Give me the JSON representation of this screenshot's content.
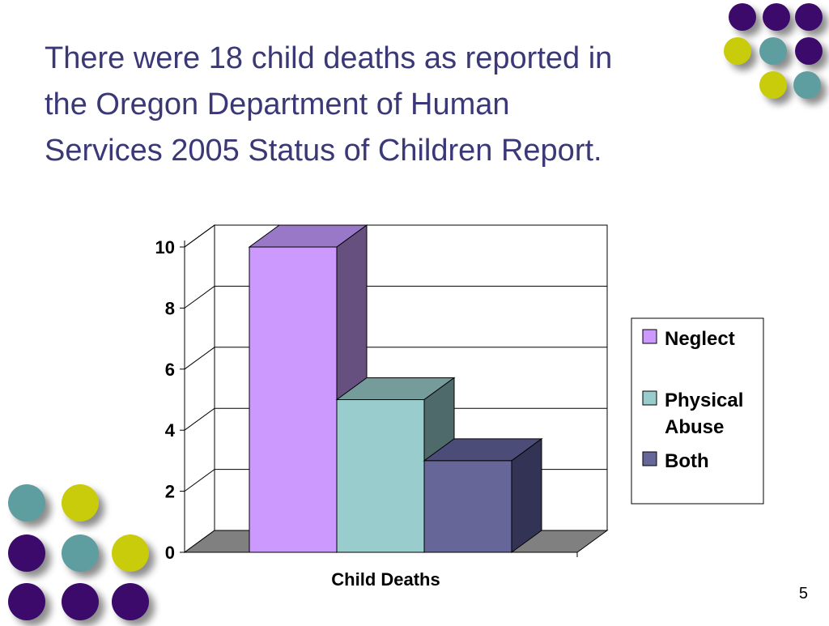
{
  "slide": {
    "title_lines": [
      "There were 18 child deaths as reported in",
      "the Oregon Department of Human",
      "Services 2005 Status of Children Report."
    ],
    "page_number": "5"
  },
  "colors": {
    "title": "#3b3878",
    "dot_purple": "#3b0a6b",
    "dot_teal": "#5f9ea0",
    "dot_yellow": "#c9cc0a"
  },
  "decor": {
    "top_dots": [
      "purple",
      "purple",
      "purple",
      "yellow",
      "teal",
      "purple",
      "yellow",
      "teal"
    ],
    "bottom_dots": [
      "teal",
      "yellow",
      "purple",
      "teal",
      "yellow",
      "purple",
      "purple",
      "purple"
    ]
  },
  "chart_data": {
    "type": "bar",
    "style": "3d-clustered-column",
    "categories": [
      "Child Deaths"
    ],
    "series": [
      {
        "name": "Neglect",
        "values": [
          10
        ],
        "color": "#cc99ff",
        "top_color": "#9a78c8",
        "side_color": "#665080"
      },
      {
        "name": "Physical Abuse",
        "values": [
          5
        ],
        "color": "#99cccc",
        "top_color": "#759b9b",
        "side_color": "#4f6a6a"
      },
      {
        "name": "Both",
        "values": [
          3
        ],
        "color": "#666699",
        "top_color": "#4c4c78",
        "side_color": "#333355"
      }
    ],
    "y_ticks": [
      "0",
      "2",
      "4",
      "6",
      "8",
      "10"
    ],
    "ylim": [
      0,
      10
    ],
    "xlabel": "",
    "ylabel": "",
    "grid": true,
    "legend_position": "right",
    "floor_color": "#808080"
  }
}
